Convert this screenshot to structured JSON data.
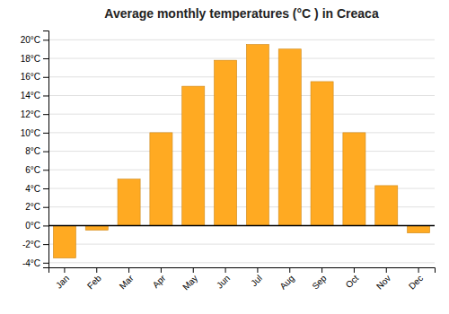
{
  "chart_data": {
    "type": "bar",
    "title": "Average monthly temperatures (°C ) in Creaca",
    "categories": [
      "Jan",
      "Feb",
      "Mar",
      "Apr",
      "May",
      "Jun",
      "Jul",
      "Aug",
      "Sep",
      "Oct",
      "Nov",
      "Dec"
    ],
    "values": [
      -3.5,
      -0.5,
      5.0,
      10.0,
      15.0,
      17.8,
      19.5,
      19.0,
      15.5,
      10.0,
      4.3,
      -0.8
    ],
    "color": "#FFAA22",
    "ylim": [
      -4.5,
      21
    ],
    "yticks": [
      {
        "value": -4,
        "label": "-4°C"
      },
      {
        "value": -2,
        "label": "-2°C"
      },
      {
        "value": 0,
        "label": "0°C"
      },
      {
        "value": 2,
        "label": "2°C"
      },
      {
        "value": 4,
        "label": "4°C"
      },
      {
        "value": 6,
        "label": "6°C"
      },
      {
        "value": 8,
        "label": "8°C"
      },
      {
        "value": 10,
        "label": "10°C"
      },
      {
        "value": 12,
        "label": "12°C"
      },
      {
        "value": 14,
        "label": "14°C"
      },
      {
        "value": 16,
        "label": "16°C"
      },
      {
        "value": 18,
        "label": "18°C"
      },
      {
        "value": 20,
        "label": "20°C"
      }
    ],
    "grid": true
  }
}
